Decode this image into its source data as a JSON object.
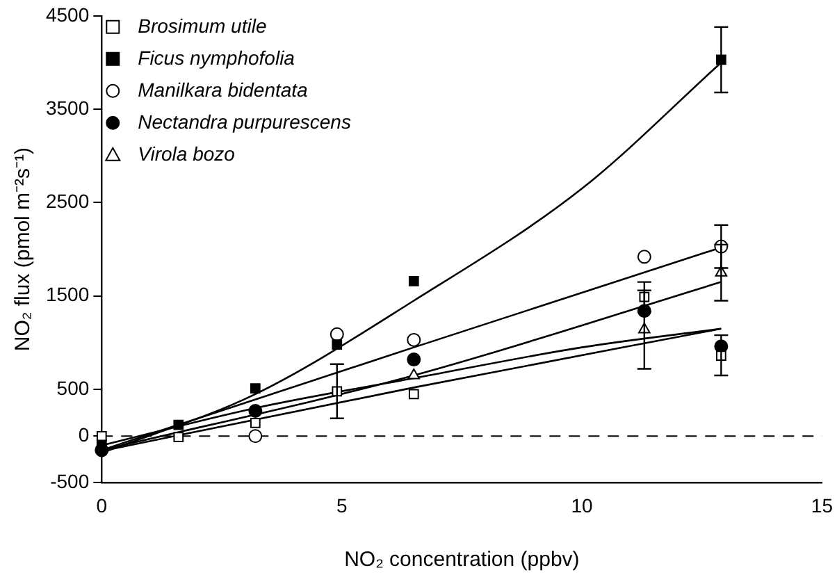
{
  "chart_data": {
    "type": "scatter",
    "xlabel": "NO₂ concentration (ppbv)",
    "ylabel": "NO₂ flux (pmol m⁻²s⁻¹)",
    "xlim": [
      0,
      15
    ],
    "xticks": [
      0,
      5,
      10,
      15
    ],
    "ylim": [
      -500,
      4500
    ],
    "yticks": [
      -500,
      0,
      500,
      1500,
      2500,
      3500,
      4500
    ],
    "grid": false,
    "legend": "top left",
    "ref_lines": [
      {
        "axis": "y",
        "value": 0,
        "line_style": "dashed",
        "color": "#000000"
      }
    ],
    "x": [
      0,
      1.6,
      3.2,
      4.9,
      6.5,
      11.3,
      12.9
    ],
    "series": [
      {
        "name": "Brosimum utile",
        "color": "#ffffff",
        "marker": "square",
        "values": [
          0,
          -10,
          140,
          480,
          450,
          1490,
          860
        ],
        "errors": [
          null,
          null,
          null,
          290,
          null,
          160,
          [
            650,
            1080
          ]
        ]
      },
      {
        "name": "Ficus nymphofolia",
        "color": "#000000",
        "marker": "square",
        "values": [
          -90,
          120,
          510,
          980,
          1660,
          null,
          4030
        ],
        "errors": [
          null,
          null,
          null,
          null,
          null,
          null,
          [
            3680,
            4380
          ]
        ]
      },
      {
        "name": "Manilkara bidentata",
        "color": "#ffffff",
        "marker": "circle",
        "values": [
          null,
          null,
          0,
          1090,
          1030,
          1920,
          2030
        ],
        "errors": [
          null,
          null,
          null,
          null,
          null,
          null,
          230
        ]
      },
      {
        "name": "Nectandra purpurescens",
        "color": "#000000",
        "marker": "circle",
        "values": [
          -150,
          null,
          270,
          null,
          820,
          1340,
          960
        ],
        "errors": [
          null,
          null,
          null,
          null,
          null,
          null,
          null
        ]
      },
      {
        "name": "Virola bozo",
        "color": "#ffffff",
        "marker": "triangle",
        "values": [
          null,
          null,
          null,
          null,
          650,
          1140,
          1750
        ],
        "errors": [
          null,
          null,
          null,
          null,
          null,
          420,
          [
            1450,
            2050
          ]
        ]
      },
      {
        "type": "line",
        "color": "#000000",
        "marker": "none",
        "x": [
          0,
          3.2,
          6.5,
          10,
          12.9
        ],
        "values": [
          -180,
          450,
          1450,
          2650,
          4000
        ]
      },
      {
        "type": "line",
        "color": "#000000",
        "marker": "none",
        "x": [
          0,
          6.5,
          12.9
        ],
        "values": [
          -150,
          950,
          2020
        ]
      },
      {
        "type": "line",
        "color": "#000000",
        "marker": "none",
        "x": [
          0,
          6.5,
          12.9
        ],
        "values": [
          -150,
          650,
          1650
        ]
      },
      {
        "type": "line",
        "color": "#000000",
        "marker": "none",
        "x": [
          0,
          3.2,
          6.5,
          10,
          12.9
        ],
        "values": [
          -100,
          300,
          620,
          950,
          1150
        ]
      },
      {
        "type": "line",
        "color": "#000000",
        "marker": "none",
        "x": [
          0,
          6.5,
          12.9
        ],
        "values": [
          -160,
          520,
          1150
        ]
      }
    ]
  }
}
